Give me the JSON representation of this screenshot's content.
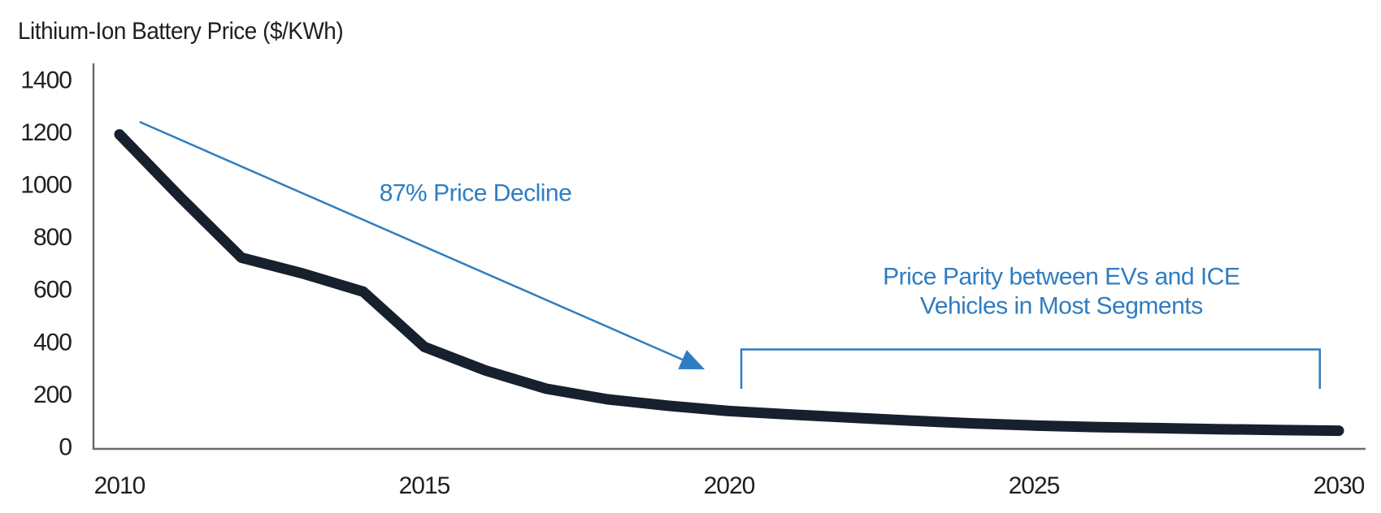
{
  "title": "Lithium-Ion Battery Price ($/KWh)",
  "colors": {
    "series_line": "#16212d",
    "annotation_blue": "#2f7dc1",
    "axis_gray": "#6b6b6b",
    "text_dark": "#1f1f1f"
  },
  "chart_data": {
    "type": "line",
    "title": "Lithium-Ion Battery Price ($/KWh)",
    "xlabel": "",
    "ylabel": "$/KWh",
    "xlim": [
      2010,
      2030
    ],
    "ylim": [
      0,
      1400
    ],
    "grid": false,
    "legend": false,
    "x_ticks": [
      2010,
      2015,
      2020,
      2025,
      2030
    ],
    "y_ticks": [
      0,
      200,
      400,
      600,
      800,
      1000,
      1200,
      1400
    ],
    "x": [
      2010,
      2011,
      2012,
      2013,
      2014,
      2015,
      2016,
      2017,
      2018,
      2019,
      2020,
      2021,
      2022,
      2023,
      2024,
      2025,
      2026,
      2027,
      2028,
      2029,
      2030
    ],
    "series": [
      {
        "name": "Lithium-ion battery price",
        "color": "#16212d",
        "values": [
          1190,
          950,
          720,
          660,
          590,
          380,
          290,
          220,
          180,
          155,
          135,
          122,
          110,
          98,
          88,
          80,
          74,
          70,
          66,
          63,
          60
        ]
      }
    ],
    "annotations": [
      {
        "id": "decline",
        "kind": "arrow-label",
        "text": "87% Price Decline",
        "color": "#2f7dc1",
        "label_anchor": {
          "year": 2015.84,
          "value": 969
        },
        "arrow": {
          "from_year": 2010.33,
          "from_value": 1238,
          "to_year": 2019.6,
          "to_value": 294
        }
      },
      {
        "id": "parity",
        "kind": "bracket-label",
        "lines": [
          "Price Parity between EVs and ICE",
          "Vehicles in Most Segments"
        ],
        "color": "#2f7dc1",
        "label_anchor": {
          "year": 2025.45,
          "line1_value": 650,
          "line2_value": 539
        },
        "bracket": {
          "from_year": 2020.2,
          "to_year": 2029.69,
          "top_value": 370,
          "tick_bottom_value": 220
        }
      }
    ]
  }
}
